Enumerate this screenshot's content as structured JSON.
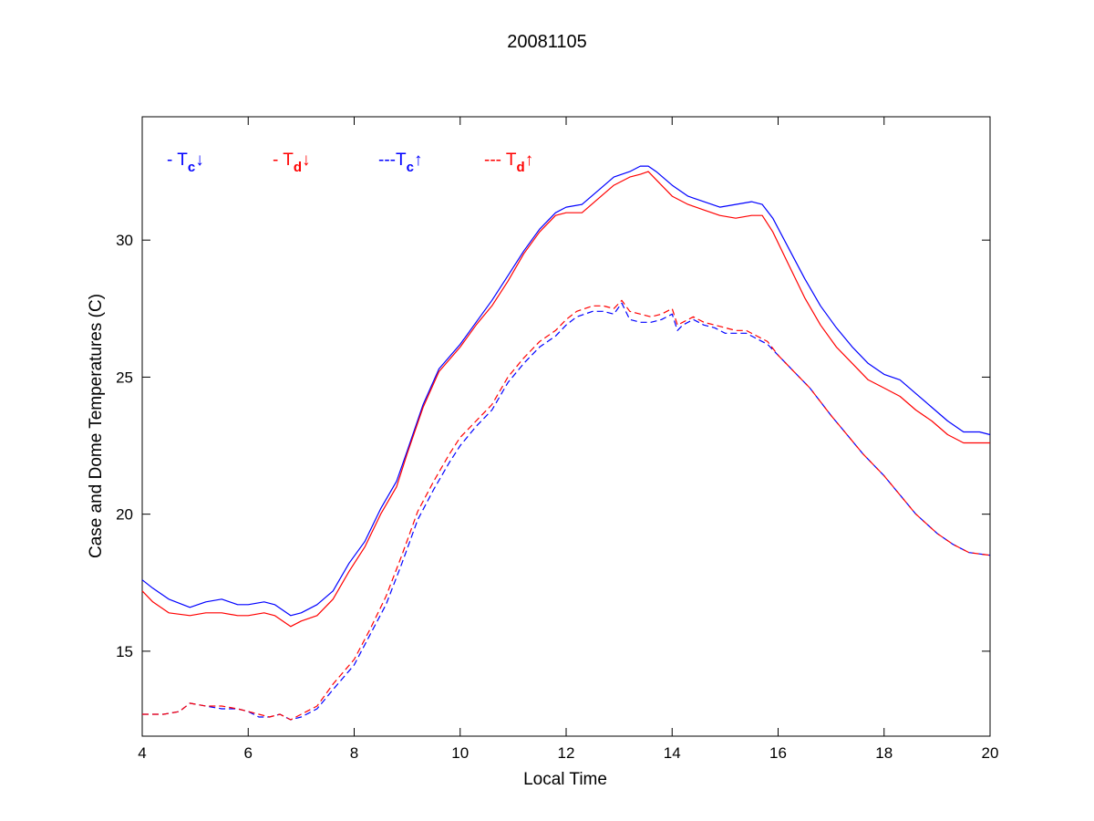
{
  "chart_data": {
    "type": "line",
    "title": "20081105",
    "xlabel": "Local Time",
    "ylabel": "Case and Dome Temperatures (C)",
    "xlim": [
      4,
      20
    ],
    "ylim": [
      11.9,
      34.5
    ],
    "xticks": [
      4,
      6,
      8,
      10,
      12,
      14,
      16,
      18,
      20
    ],
    "yticks": [
      15,
      20,
      25,
      30
    ],
    "grid": false,
    "legend_position": "top-left",
    "colors": {
      "blue": "#0000ff",
      "red": "#ff0000"
    },
    "legend": [
      {
        "prefix": "- T",
        "sub": "c",
        "arrow": "↓",
        "color": "#0000ff"
      },
      {
        "prefix": "- T",
        "sub": "d",
        "arrow": "↓",
        "color": "#ff0000"
      },
      {
        "prefix": "---T",
        "sub": "c",
        "arrow": "↑",
        "color": "#0000ff"
      },
      {
        "prefix": "--- T",
        "sub": "d",
        "arrow": "↑",
        "color": "#ff0000"
      }
    ],
    "series": [
      {
        "color": "#0000ff",
        "dash": "solid",
        "x": [
          4.0,
          4.2,
          4.5,
          4.9,
          5.2,
          5.5,
          5.8,
          6.0,
          6.3,
          6.5,
          6.8,
          7.0,
          7.3,
          7.6,
          7.9,
          8.2,
          8.5,
          8.8,
          9.0,
          9.3,
          9.6,
          10.0,
          10.3,
          10.6,
          10.9,
          11.2,
          11.5,
          11.8,
          12.0,
          12.3,
          12.6,
          12.9,
          13.2,
          13.4,
          13.55,
          13.7,
          14.0,
          14.3,
          14.6,
          14.9,
          15.2,
          15.5,
          15.7,
          15.9,
          16.2,
          16.5,
          16.8,
          17.1,
          17.4,
          17.7,
          18.0,
          18.3,
          18.6,
          18.9,
          19.2,
          19.5,
          19.8,
          20.0
        ],
        "y": [
          17.6,
          17.3,
          16.9,
          16.6,
          16.8,
          16.9,
          16.7,
          16.7,
          16.8,
          16.7,
          16.3,
          16.4,
          16.7,
          17.2,
          18.2,
          19.0,
          20.2,
          21.2,
          22.3,
          24.0,
          25.3,
          26.2,
          27.0,
          27.8,
          28.7,
          29.6,
          30.4,
          31.0,
          31.2,
          31.3,
          31.8,
          32.3,
          32.5,
          32.7,
          32.7,
          32.5,
          32.0,
          31.6,
          31.4,
          31.2,
          31.3,
          31.4,
          31.3,
          30.8,
          29.7,
          28.6,
          27.6,
          26.8,
          26.1,
          25.5,
          25.1,
          24.9,
          24.4,
          23.9,
          23.4,
          23.0,
          23.0,
          22.9
        ]
      },
      {
        "color": "#ff0000",
        "dash": "solid",
        "x": [
          4.0,
          4.2,
          4.5,
          4.9,
          5.2,
          5.5,
          5.8,
          6.0,
          6.3,
          6.5,
          6.8,
          7.0,
          7.3,
          7.6,
          7.9,
          8.2,
          8.5,
          8.8,
          9.0,
          9.3,
          9.6,
          10.0,
          10.3,
          10.6,
          10.9,
          11.2,
          11.5,
          11.8,
          12.0,
          12.3,
          12.6,
          12.9,
          13.2,
          13.4,
          13.55,
          13.7,
          14.0,
          14.3,
          14.6,
          14.9,
          15.2,
          15.5,
          15.7,
          15.9,
          16.2,
          16.5,
          16.8,
          17.1,
          17.4,
          17.7,
          18.0,
          18.3,
          18.6,
          18.9,
          19.2,
          19.5,
          19.8,
          20.0
        ],
        "y": [
          17.2,
          16.8,
          16.4,
          16.3,
          16.4,
          16.4,
          16.3,
          16.3,
          16.4,
          16.3,
          15.9,
          16.1,
          16.3,
          16.9,
          17.9,
          18.8,
          20.0,
          21.0,
          22.2,
          23.9,
          25.2,
          26.1,
          26.9,
          27.6,
          28.5,
          29.5,
          30.3,
          30.9,
          31.0,
          31.0,
          31.5,
          32.0,
          32.3,
          32.4,
          32.5,
          32.2,
          31.6,
          31.3,
          31.1,
          30.9,
          30.8,
          30.9,
          30.9,
          30.3,
          29.1,
          27.9,
          26.9,
          26.1,
          25.5,
          24.9,
          24.6,
          24.3,
          23.8,
          23.4,
          22.9,
          22.6,
          22.6,
          22.6
        ]
      },
      {
        "color": "#0000ff",
        "dash": "dashed",
        "x": [
          4.0,
          4.4,
          4.7,
          4.9,
          5.2,
          5.5,
          5.8,
          6.0,
          6.2,
          6.4,
          6.6,
          6.8,
          7.0,
          7.3,
          7.6,
          8.0,
          8.3,
          8.6,
          8.9,
          9.2,
          9.5,
          9.8,
          10.0,
          10.3,
          10.6,
          10.9,
          11.2,
          11.5,
          11.8,
          12.0,
          12.2,
          12.5,
          12.7,
          12.9,
          13.05,
          13.2,
          13.4,
          13.6,
          13.8,
          14.0,
          14.1,
          14.2,
          14.4,
          14.6,
          14.8,
          15.0,
          15.2,
          15.4,
          15.6,
          15.8,
          16.0,
          16.3,
          16.6,
          17.0,
          17.3,
          17.6,
          18.0,
          18.3,
          18.6,
          19.0,
          19.3,
          19.6,
          20.0
        ],
        "y": [
          12.7,
          12.7,
          12.8,
          13.1,
          13.0,
          12.9,
          12.9,
          12.8,
          12.6,
          12.6,
          12.7,
          12.5,
          12.6,
          12.9,
          13.6,
          14.5,
          15.6,
          16.7,
          18.2,
          19.8,
          20.9,
          21.9,
          22.5,
          23.2,
          23.8,
          24.8,
          25.5,
          26.1,
          26.5,
          26.9,
          27.2,
          27.4,
          27.4,
          27.3,
          27.7,
          27.1,
          27.0,
          27.0,
          27.1,
          27.3,
          26.7,
          26.9,
          27.1,
          26.9,
          26.8,
          26.6,
          26.6,
          26.6,
          26.4,
          26.2,
          25.8,
          25.2,
          24.6,
          23.6,
          22.9,
          22.2,
          21.4,
          20.7,
          20.0,
          19.3,
          18.9,
          18.6,
          18.5
        ]
      },
      {
        "color": "#ff0000",
        "dash": "dashed",
        "x": [
          4.0,
          4.4,
          4.7,
          4.9,
          5.2,
          5.5,
          5.8,
          6.0,
          6.2,
          6.4,
          6.6,
          6.8,
          7.0,
          7.3,
          7.6,
          8.0,
          8.3,
          8.6,
          8.9,
          9.2,
          9.5,
          9.8,
          10.0,
          10.3,
          10.6,
          10.9,
          11.2,
          11.5,
          11.8,
          12.0,
          12.2,
          12.5,
          12.7,
          12.9,
          13.05,
          13.2,
          13.4,
          13.6,
          13.8,
          14.0,
          14.1,
          14.2,
          14.4,
          14.6,
          14.8,
          15.0,
          15.2,
          15.4,
          15.6,
          15.8,
          16.0,
          16.3,
          16.6,
          17.0,
          17.3,
          17.6,
          18.0,
          18.3,
          18.6,
          19.0,
          19.3,
          19.6,
          20.0
        ],
        "y": [
          12.7,
          12.7,
          12.8,
          13.1,
          13.0,
          13.0,
          12.9,
          12.8,
          12.7,
          12.6,
          12.7,
          12.5,
          12.7,
          13.0,
          13.8,
          14.7,
          15.8,
          17.0,
          18.5,
          20.1,
          21.2,
          22.2,
          22.8,
          23.4,
          24.0,
          25.0,
          25.7,
          26.3,
          26.7,
          27.1,
          27.4,
          27.6,
          27.6,
          27.5,
          27.8,
          27.4,
          27.3,
          27.2,
          27.3,
          27.5,
          26.9,
          27.0,
          27.2,
          27.0,
          26.9,
          26.8,
          26.7,
          26.7,
          26.5,
          26.3,
          25.8,
          25.2,
          24.6,
          23.6,
          22.9,
          22.2,
          21.4,
          20.7,
          20.0,
          19.3,
          18.9,
          18.6,
          18.5
        ]
      }
    ]
  }
}
